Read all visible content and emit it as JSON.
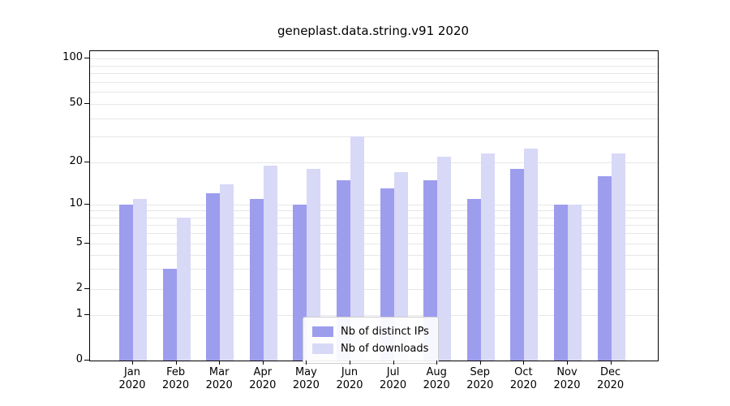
{
  "chart_data": {
    "type": "bar",
    "title": "geneplast.data.string.v91 2020",
    "scale": "log-like",
    "grid": true,
    "legend_position": "lower center",
    "ylim": [
      0,
      112
    ],
    "y_ticks": [
      100,
      50,
      20,
      10,
      5,
      2,
      1,
      0
    ],
    "year_label": "2020",
    "months": [
      "Jan",
      "Feb",
      "Mar",
      "Apr",
      "May",
      "Jun",
      "Jul",
      "Aug",
      "Sep",
      "Oct",
      "Nov",
      "Dec"
    ],
    "categories": [
      "Jan 2020",
      "Feb 2020",
      "Mar 2020",
      "Apr 2020",
      "May 2020",
      "Jun 2020",
      "Jul 2020",
      "Aug 2020",
      "Sep 2020",
      "Oct 2020",
      "Nov 2020",
      "Dec 2020"
    ],
    "series": [
      {
        "name": "Nb of distinct IPs",
        "color": "#9d9dee",
        "values": [
          10,
          3,
          12,
          11,
          10,
          15,
          13,
          15,
          11,
          18,
          10,
          16
        ]
      },
      {
        "name": "Nb of downloads",
        "color": "#d8d8f7",
        "values": [
          11,
          8,
          14,
          19,
          18,
          30,
          17,
          22,
          23,
          25,
          10,
          23
        ]
      }
    ]
  }
}
